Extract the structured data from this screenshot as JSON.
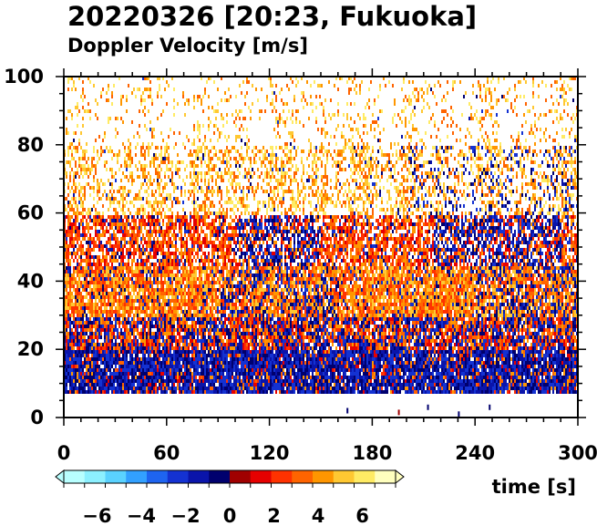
{
  "chart_data": {
    "type": "heatmap",
    "title": "20220326 [20:23, Fukuoka]",
    "subtitle": "Doppler Velocity [m/s]",
    "xlabel": "time [s]",
    "ylabel": "",
    "xlim": [
      0,
      300
    ],
    "ylim": [
      0,
      100
    ],
    "x_ticks": [
      "0",
      "60",
      "120",
      "180",
      "240",
      "300"
    ],
    "y_ticks": [
      "0",
      "20",
      "40",
      "60",
      "80",
      "100"
    ],
    "grid": false,
    "no_data_below_y": 8,
    "colorbar": {
      "range": [
        -7.5,
        7.5
      ],
      "ticks": [
        "−6",
        "−4",
        "−2",
        "0",
        "2",
        "4",
        "6"
      ],
      "tick_values": [
        -6,
        -4,
        -2,
        0,
        2,
        4,
        6
      ],
      "colors_negative": [
        "#b8ffff",
        "#8cf0ff",
        "#5ad2ff",
        "#32a0ff",
        "#1e64f0",
        "#1432d2",
        "#0a14aa",
        "#00006e"
      ],
      "colors_positive": [
        "#a00000",
        "#e60000",
        "#ff3200",
        "#ff6400",
        "#ff9600",
        "#ffc832",
        "#ffeb64",
        "#ffffbe"
      ]
    },
    "velocity_layers": [
      {
        "height_range": [
          8,
          20
        ],
        "sign": "negative"
      },
      {
        "height_range": [
          20,
          30
        ],
        "sign": "mixed"
      },
      {
        "height_range": [
          30,
          45
        ],
        "sign": "mostly positive"
      },
      {
        "height_range": [
          45,
          60
        ],
        "sign": "mixed, negative patches"
      },
      {
        "height_range": [
          60,
          100
        ],
        "sign": "sparse positive"
      }
    ]
  }
}
